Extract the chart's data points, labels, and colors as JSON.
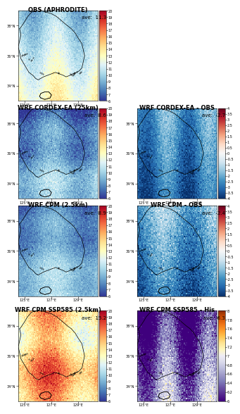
{
  "panels": [
    {
      "title": "OBS (APHRODITE)",
      "ave_label": "ave:  11.3",
      "pattern": "obs",
      "cmap_type": "temp",
      "vmin": 6,
      "vmax": 20,
      "cbar_ticks": [
        6,
        7,
        8,
        9,
        10,
        11,
        12,
        13,
        14,
        15,
        16,
        17,
        18,
        19,
        20
      ],
      "row": 0,
      "col": 0
    },
    {
      "title": "WRF CORDEX-EA (25km)",
      "ave_label": "ave:  8.6",
      "pattern": "cordex",
      "cmap_type": "temp",
      "vmin": 6,
      "vmax": 20,
      "cbar_ticks": [
        6,
        7,
        8,
        9,
        10,
        11,
        12,
        13,
        14,
        15,
        16,
        17,
        18,
        19,
        20
      ],
      "row": 1,
      "col": 0
    },
    {
      "title": "WRF CORDEX-EA - OBS",
      "ave_label": "ave:  -2.7",
      "pattern": "cordex_diff",
      "cmap_type": "diff",
      "vmin": -4,
      "vmax": 4,
      "cbar_ticks": [
        -4,
        -3.5,
        -3,
        -2.5,
        -2,
        -1.5,
        -1,
        -0.5,
        0,
        0.5,
        1,
        1.5,
        2,
        2.5,
        3,
        3.5,
        4
      ],
      "row": 1,
      "col": 1
    },
    {
      "title": "WRF CPM (2.5km)",
      "ave_label": "ave:  8.9",
      "pattern": "cpm",
      "cmap_type": "temp",
      "vmin": 6,
      "vmax": 20,
      "cbar_ticks": [
        6,
        7,
        8,
        9,
        10,
        11,
        12,
        13,
        14,
        15,
        16,
        17,
        18,
        19,
        20
      ],
      "row": 2,
      "col": 0
    },
    {
      "title": "WRF CPM - OBS",
      "ave_label": "ave:  -2.4",
      "pattern": "cpm_diff",
      "cmap_type": "diff",
      "vmin": -4,
      "vmax": 4,
      "cbar_ticks": [
        -4,
        -3.5,
        -3,
        -2.5,
        -2,
        -1.5,
        -1,
        -0.5,
        0,
        0.5,
        1,
        1.5,
        2,
        2.5,
        3,
        3.5,
        4
      ],
      "row": 2,
      "col": 1
    },
    {
      "title": "WRF CPM SSP585 (2.5km)",
      "ave_label": "ave:  15.2",
      "pattern": "ssp585",
      "cmap_type": "temp",
      "vmin": 6,
      "vmax": 20,
      "cbar_ticks": [
        6,
        7,
        8,
        9,
        10,
        11,
        12,
        13,
        14,
        15,
        16,
        17,
        18,
        19,
        20
      ],
      "row": 3,
      "col": 0
    },
    {
      "title": "WRF CPM SSP585 - His",
      "ave_label": "ave:  6.3",
      "pattern": "ssp_diff",
      "cmap_type": "ssp_diff",
      "vmin": 6,
      "vmax": 8,
      "cbar_ticks": [
        6,
        6.2,
        6.4,
        6.6,
        6.8,
        7,
        7.2,
        7.4,
        7.6,
        7.8,
        8
      ],
      "row": 3,
      "col": 1
    }
  ],
  "lon_min": 124.5,
  "lon_max": 130.5,
  "lat_min": 33.0,
  "lat_max": 39.0,
  "lon_ticks": [
    125,
    127,
    129
  ],
  "lat_ticks": [
    34,
    36,
    38
  ],
  "lon_tick_labels": [
    "125°E",
    "127°E",
    "129°E"
  ],
  "lat_tick_labels": [
    "34°N",
    "36°N",
    "38°N"
  ]
}
